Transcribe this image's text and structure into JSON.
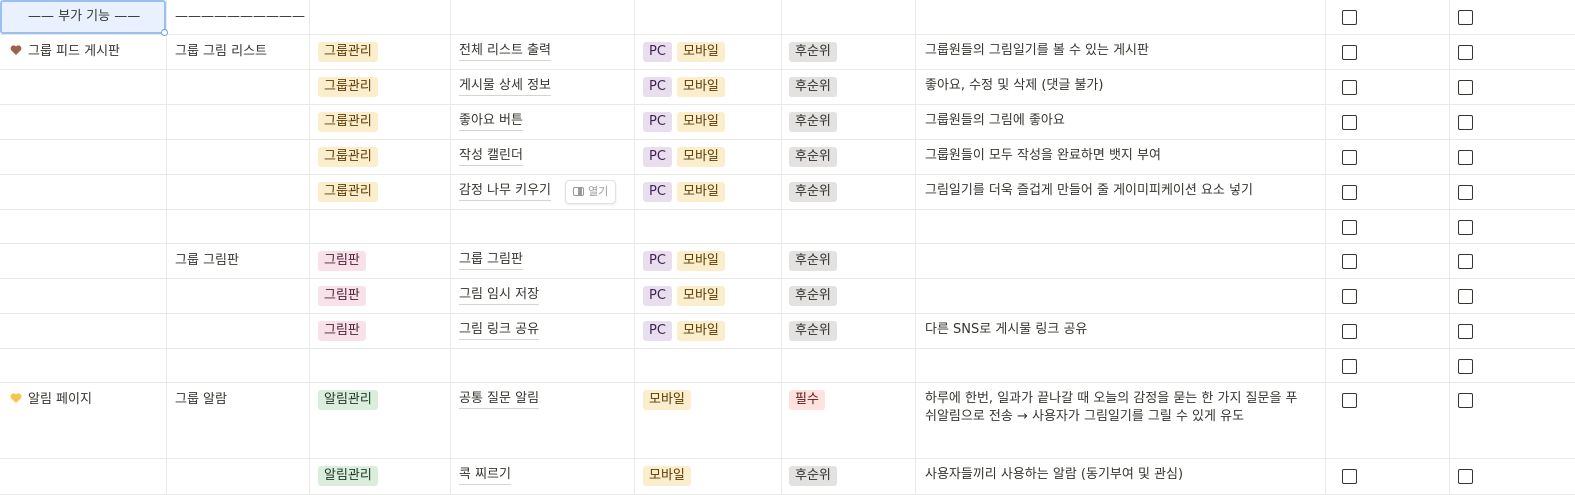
{
  "colors": {
    "tag_group": {
      "bg": "#fbeecc",
      "fg": "#5c3b05"
    },
    "tag_drawing": {
      "bg": "#f9e1ea",
      "fg": "#4c2337"
    },
    "tag_alarm": {
      "bg": "#dbeddb",
      "fg": "#1c3829"
    },
    "tag_pc": {
      "bg": "#e8deee",
      "fg": "#412454"
    },
    "tag_mobile": {
      "bg": "#fbeecc",
      "fg": "#5c3b05"
    },
    "tag_later": {
      "bg": "#e3e2e0",
      "fg": "#32302c"
    },
    "tag_required": {
      "bg": "#ffe2dd",
      "fg": "#5d1715"
    },
    "heart_brown": "#a0614a",
    "heart_yellow": "#f5c64a"
  },
  "header": {
    "feature_label": "—— 부가 기능 ——",
    "line_label": "——————————"
  },
  "rows": [
    {
      "page": "그룹 피드 게시판",
      "heart": "brown",
      "section": "그룹 그림 리스트",
      "category": "그룹관리",
      "cat_color": "group",
      "feature": "전체 리스트 출력",
      "platforms": [
        "PC",
        "모바일"
      ],
      "priority": "후순위",
      "desc": "그룹원들의 그림일기를 볼 수 있는 게시판"
    },
    {
      "page": "",
      "heart": "",
      "section": "",
      "category": "그룹관리",
      "cat_color": "group",
      "feature": "게시물 상세 정보",
      "platforms": [
        "PC",
        "모바일"
      ],
      "priority": "후순위",
      "desc": "좋아요, 수정 및 삭제 (댓글 불가)"
    },
    {
      "page": "",
      "heart": "",
      "section": "",
      "category": "그룹관리",
      "cat_color": "group",
      "feature": "좋아요 버튼",
      "platforms": [
        "PC",
        "모바일"
      ],
      "priority": "후순위",
      "desc": "그룹원들의 그림에 좋아요"
    },
    {
      "page": "",
      "heart": "",
      "section": "",
      "category": "그룹관리",
      "cat_color": "group",
      "feature": "작성 캘린더",
      "platforms": [
        "PC",
        "모바일"
      ],
      "priority": "후순위",
      "desc": "그룹원들이 모두 작성을 완료하면 뱃지 부여"
    },
    {
      "page": "",
      "heart": "",
      "section": "",
      "category": "그룹관리",
      "cat_color": "group",
      "feature": "감정 나무 키우기",
      "platforms": [
        "PC",
        "모바일"
      ],
      "priority": "후순위",
      "desc": "그림일기를 더욱 즐겁게 만들어 줄 게이미피케이션 요소 넣기",
      "open": "열기"
    },
    {
      "page": "",
      "heart": "",
      "section": "",
      "category": "",
      "cat_color": "",
      "feature": "",
      "platforms": [],
      "priority": "",
      "desc": ""
    },
    {
      "page": "",
      "heart": "",
      "section": "그룹 그림판",
      "category": "그림판",
      "cat_color": "drawing",
      "feature": "그룹 그림판",
      "platforms": [
        "PC",
        "모바일"
      ],
      "priority": "후순위",
      "desc": ""
    },
    {
      "page": "",
      "heart": "",
      "section": "",
      "category": "그림판",
      "cat_color": "drawing",
      "feature": "그림 임시 저장",
      "platforms": [
        "PC",
        "모바일"
      ],
      "priority": "후순위",
      "desc": ""
    },
    {
      "page": "",
      "heart": "",
      "section": "",
      "category": "그림판",
      "cat_color": "drawing",
      "feature": "그림 링크 공유",
      "platforms": [
        "PC",
        "모바일"
      ],
      "priority": "후순위",
      "desc": "다른 SNS로 게시물 링크 공유"
    },
    {
      "page": "",
      "heart": "",
      "section": "",
      "category": "",
      "cat_color": "",
      "feature": "",
      "platforms": [],
      "priority": "",
      "desc": ""
    },
    {
      "page": "알림 페이지",
      "heart": "yellow",
      "section": "그룹 알람",
      "category": "알림관리",
      "cat_color": "alarm",
      "feature": "공통 질문 알림",
      "platforms": [
        "모바일"
      ],
      "priority": "필수",
      "desc": "하루에 한번, 일과가 끝나갈 때 오늘의 감정을 묻는 한 가지 질문을 푸쉬알림으로 전송 → 사용자가 그림일기를 그릴 수 있게 유도",
      "tall": true
    },
    {
      "page": "",
      "heart": "",
      "section": "",
      "category": "알림관리",
      "cat_color": "alarm",
      "feature": "콕 찌르기",
      "platforms": [
        "모바일"
      ],
      "priority": "후순위",
      "desc": "사용자들끼리 사용하는 알람 (동기부여 및 관심)"
    }
  ]
}
